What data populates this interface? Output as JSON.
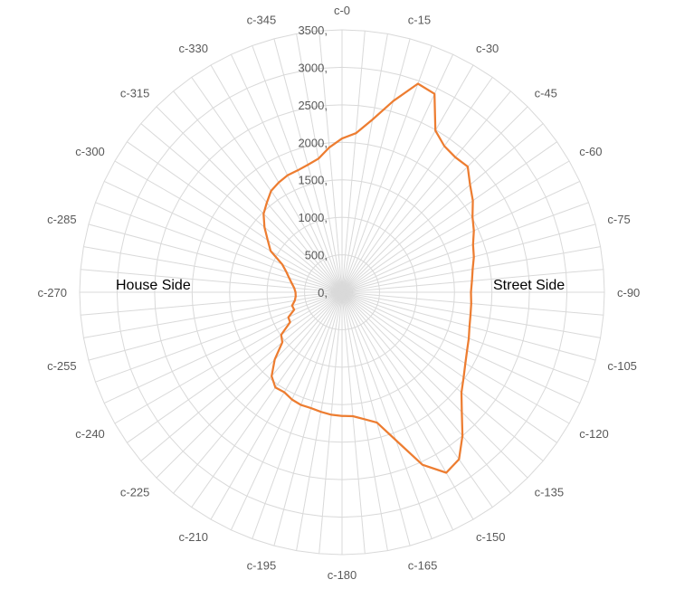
{
  "chart_data": {
    "type": "radar",
    "title": "",
    "rlim": [
      0,
      3500
    ],
    "r_ticks": [
      "0,",
      "500,",
      "1000,",
      "1500,",
      "2000,",
      "2500,",
      "3000,",
      "3500,"
    ],
    "grid": true,
    "categories": [
      "c-0",
      "c-5",
      "c-10",
      "c-15",
      "c-20",
      "c-25",
      "c-30",
      "c-35",
      "c-40",
      "c-45",
      "c-50",
      "c-55",
      "c-60",
      "c-65",
      "c-70",
      "c-75",
      "c-80",
      "c-85",
      "c-90",
      "c-95",
      "c-100",
      "c-105",
      "c-110",
      "c-115",
      "c-120",
      "c-125",
      "c-130",
      "c-135",
      "c-140",
      "c-145",
      "c-150",
      "c-155",
      "c-160",
      "c-165",
      "c-170",
      "c-175",
      "c-180",
      "c-185",
      "c-190",
      "c-195",
      "c-200",
      "c-205",
      "c-210",
      "c-215",
      "c-220",
      "c-225",
      "c-230",
      "c-235",
      "c-240",
      "c-245",
      "c-250",
      "c-255",
      "c-260",
      "c-265",
      "c-270",
      "c-275",
      "c-280",
      "c-285",
      "c-290",
      "c-295",
      "c-300",
      "c-305",
      "c-310",
      "c-315",
      "c-320",
      "c-325",
      "c-330",
      "c-335",
      "c-340",
      "c-345",
      "c-350",
      "c-355"
    ],
    "labeled_categories": [
      "c-0",
      "c-15",
      "c-30",
      "c-45",
      "c-60",
      "c-75",
      "c-90",
      "c-105",
      "c-120",
      "c-135",
      "c-150",
      "c-165",
      "c-180",
      "c-195",
      "c-210",
      "c-225",
      "c-240",
      "c-255",
      "c-270",
      "c-285",
      "c-300",
      "c-315",
      "c-330",
      "c-345"
    ],
    "series": [
      {
        "color": "#ED7D31",
        "values": [
          2050,
          2130,
          2340,
          2640,
          2960,
          2920,
          2490,
          2380,
          2350,
          2370,
          2230,
          2130,
          2010,
          1940,
          1860,
          1820,
          1770,
          1740,
          1720,
          1730,
          1740,
          1760,
          1800,
          1840,
          1900,
          1980,
          2080,
          2260,
          2500,
          2720,
          2780,
          2540,
          2100,
          1800,
          1720,
          1660,
          1650,
          1640,
          1620,
          1600,
          1600,
          1580,
          1540,
          1550,
          1460,
          1270,
          1040,
          990,
          800,
          790,
          680,
          690,
          640,
          620,
          620,
          640,
          680,
          730,
          790,
          880,
          1100,
          1210,
          1350,
          1480,
          1560,
          1650,
          1690,
          1720,
          1730,
          1760,
          1810,
          1940
        ]
      }
    ],
    "annotations": {
      "left": "House Side",
      "right": "Street Side"
    }
  }
}
